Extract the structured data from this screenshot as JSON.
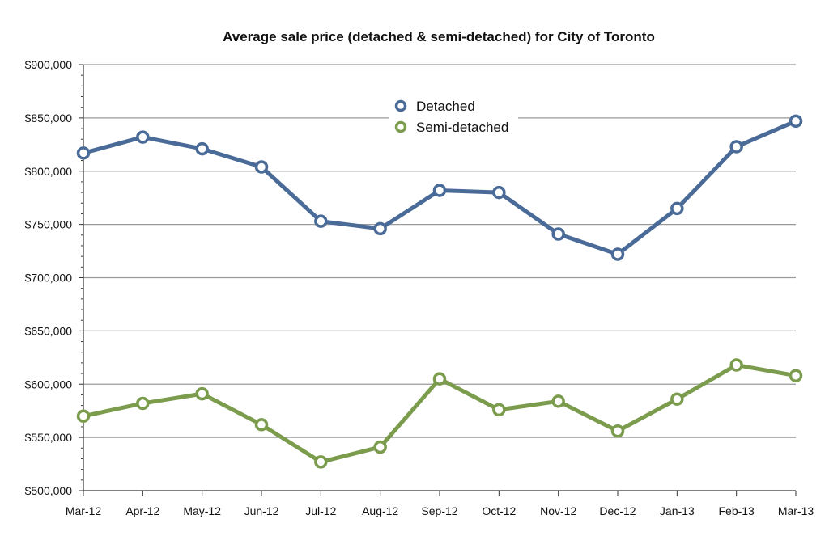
{
  "chart_data": {
    "type": "line",
    "title": "Average sale price (detached & semi-detached) for City of Toronto",
    "xlabel": "",
    "ylabel": "",
    "categories": [
      "Mar-12",
      "Apr-12",
      "May-12",
      "Jun-12",
      "Jul-12",
      "Aug-12",
      "Sep-12",
      "Oct-12",
      "Nov-12",
      "Dec-12",
      "Jan-13",
      "Feb-13",
      "Mar-13"
    ],
    "ylim": [
      500000,
      900000
    ],
    "yticks": [
      500000,
      550000,
      600000,
      650000,
      700000,
      750000,
      800000,
      850000,
      900000
    ],
    "ytick_labels": [
      "$500,000",
      "$550,000",
      "$600,000",
      "$650,000",
      "$700,000",
      "$750,000",
      "$800,000",
      "$850,000",
      "$900,000"
    ],
    "grid": true,
    "legend_position": "top-center",
    "series": [
      {
        "name": "Detached",
        "color": "#4a6b98",
        "values": [
          817000,
          832000,
          821000,
          804000,
          753000,
          746000,
          782000,
          780000,
          741000,
          722000,
          765000,
          823000,
          847000
        ]
      },
      {
        "name": "Semi-detached",
        "color": "#7b9c4c",
        "values": [
          570000,
          582000,
          591000,
          562000,
          527000,
          541000,
          605000,
          576000,
          584000,
          556000,
          586000,
          618000,
          608000
        ]
      }
    ]
  }
}
